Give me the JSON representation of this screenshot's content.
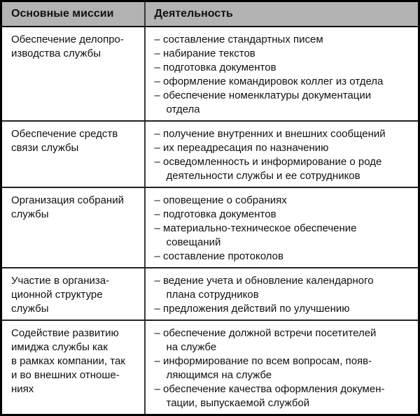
{
  "colors": {
    "header_bg": "#b3b3b3",
    "outer_border": "#000000",
    "rule": "#222222",
    "text": "#111111"
  },
  "table": {
    "headers": [
      {
        "label": "Основные миссии"
      },
      {
        "label": "Деятельность"
      }
    ],
    "rows": [
      {
        "mission": "Обеспечение делопро-\nизводства службы",
        "activities": [
          "– составление стандартных писем",
          "– набирание текстов",
          "– подготовка документов",
          "– оформление командировок коллег из отдела",
          "– обеспечение номенклатуры документации\nотдела"
        ]
      },
      {
        "mission": "Обеспечение средств\nсвязи службы",
        "activities": [
          "– получение внутренних и внешних сообщений",
          "– их переадресация по назначению",
          "– осведомленность и информирование о роде\nдеятельности службы и ее сотрудников"
        ]
      },
      {
        "mission": "Организация собраний\nслужбы",
        "activities": [
          "– оповещение о собраниях",
          "– подготовка документов",
          "– материально-техническое обеспечение\nсовещаний",
          "– составление протоколов"
        ]
      },
      {
        "mission": "Участие в организа-\nционной структуре\nслужбы",
        "activities": [
          "– ведение учета и обновление календарного\nплана сотрудников",
          "– предложения действий по улучшению"
        ]
      },
      {
        "mission": "Содействие развитию\nимиджа службы как\nв рамках компании, так\nи во внешних отноше-\nниях",
        "activities": [
          "– обеспечение должной встречи посетителей\nна службе",
          "– информирование по всем вопросам, появ-\nляющимся на службе",
          "– обеспечение качества оформления докумен-\nтации, выпускаемой службой"
        ]
      }
    ]
  }
}
